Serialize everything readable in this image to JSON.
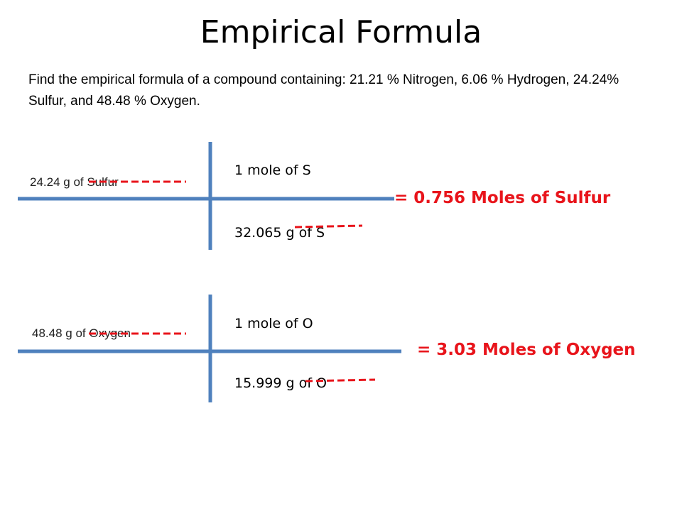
{
  "header": {
    "title": "Empirical Formula"
  },
  "problem": "Find the empirical formula of a compound containing: 21.21 % Nitrogen, 6.06 % Hydrogen, 24.24% Sulfur, and 48.48 % Oxygen.",
  "calculations": [
    {
      "given": "24.24 g of Sulfur",
      "numerator": "1 mole of S",
      "denominator": "32.065 g of S",
      "result": "= 0.756 Moles of Sulfur"
    },
    {
      "given": "48.48 g of Oxygen",
      "numerator": "1 mole of O",
      "denominator": "15.999 g of O",
      "result": "= 3.03 Moles of Oxygen"
    }
  ]
}
